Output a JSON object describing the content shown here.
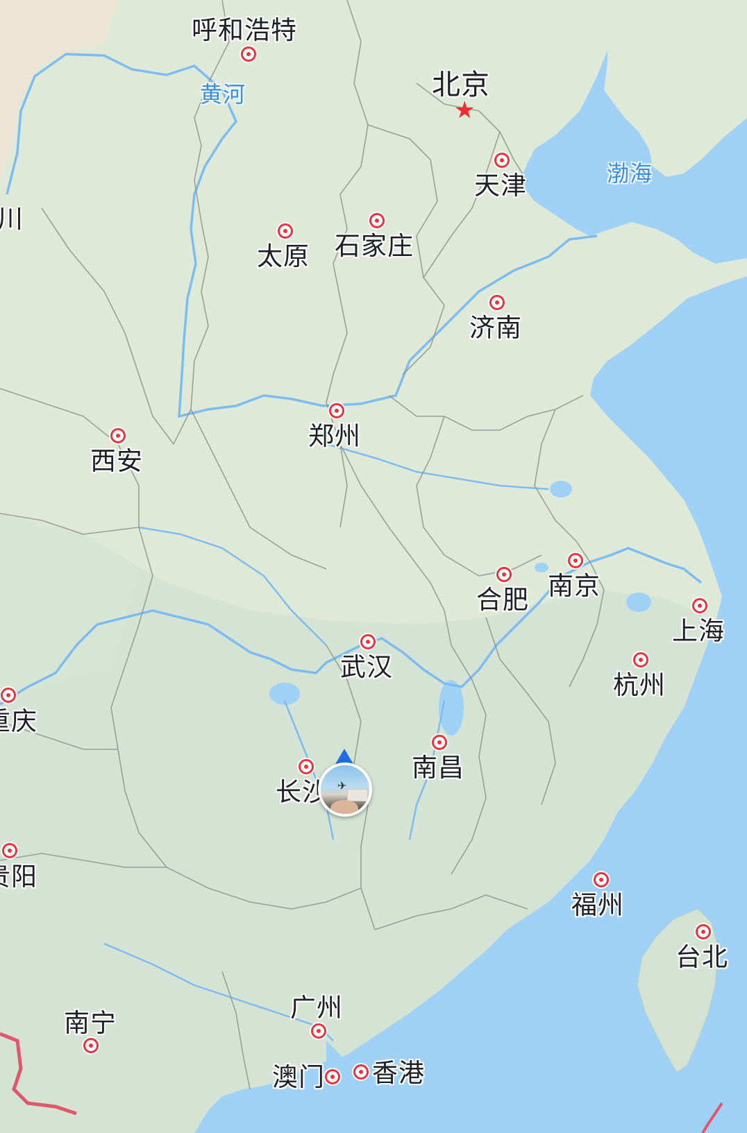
{
  "map": {
    "capital": {
      "name": "北京",
      "marker_icon": "red-star-icon"
    },
    "cities": [
      {
        "id": "hohhot",
        "name": "呼和浩特"
      },
      {
        "id": "tianjin",
        "name": "天津"
      },
      {
        "id": "taiyuan",
        "name": "太原"
      },
      {
        "id": "shijiazhuang",
        "name": "石家庄"
      },
      {
        "id": "jinan",
        "name": "济南"
      },
      {
        "id": "zhengzhou",
        "name": "郑州"
      },
      {
        "id": "xian",
        "name": "西安"
      },
      {
        "id": "hefei",
        "name": "合肥"
      },
      {
        "id": "nanjing",
        "name": "南京"
      },
      {
        "id": "shanghai",
        "name": "上海"
      },
      {
        "id": "wuhan",
        "name": "武汉"
      },
      {
        "id": "hangzhou",
        "name": "杭州"
      },
      {
        "id": "chongqing",
        "name": "重庆"
      },
      {
        "id": "nanchang",
        "name": "南昌"
      },
      {
        "id": "changsha",
        "name": "长沙"
      },
      {
        "id": "guiyang",
        "name": "贵阳"
      },
      {
        "id": "fuzhou",
        "name": "福州"
      },
      {
        "id": "taipei",
        "name": "台北"
      },
      {
        "id": "guangzhou",
        "name": "广州"
      },
      {
        "id": "nanning",
        "name": "南宁"
      },
      {
        "id": "macau",
        "name": "澳门"
      },
      {
        "id": "hongkong",
        "name": "香港"
      }
    ],
    "edge_fragment_text": "川",
    "water_labels": [
      {
        "id": "yellow-river",
        "name": "黄河"
      },
      {
        "id": "bohai",
        "name": "渤海"
      }
    ],
    "user_location": {
      "avatar_icon": "user-avatar-icon",
      "heading_icon": "heading-arrow-icon"
    },
    "colors": {
      "sea": "#9fd0f5",
      "land": "#dfe9d8",
      "south_land": "#d4e2d3",
      "river": "#7cbcf0",
      "border": "#8d958c",
      "city_marker": "#e8343f",
      "capital_star": "#ee2d2f",
      "national_border": "#e0566a",
      "water_label": "#3c8fd8"
    }
  }
}
